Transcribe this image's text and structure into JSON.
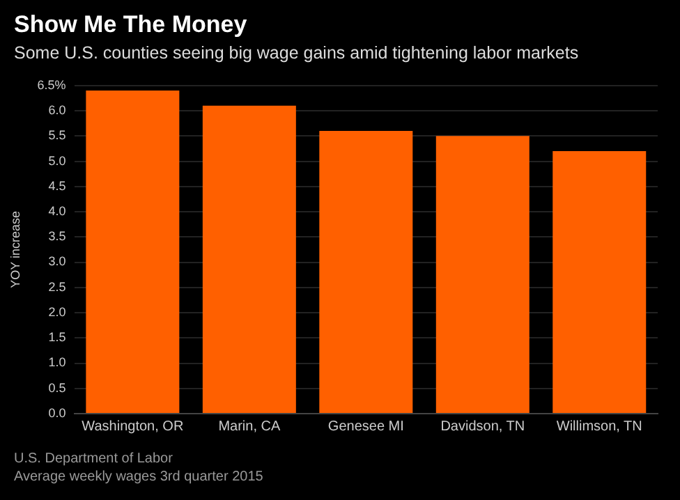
{
  "chart_data": {
    "type": "bar",
    "title": "Show Me The Money",
    "subtitle": "Some U.S. counties seeing big wage gains amid tightening labor markets",
    "ylabel": "YOY increase",
    "categories": [
      "Washington, OR",
      "Marin, CA",
      "Genesee MI",
      "Davidson, TN",
      "Willimson, TN"
    ],
    "values": [
      6.4,
      6.1,
      5.6,
      5.5,
      5.2
    ],
    "color": "#ff6000",
    "ylim": [
      0,
      6.5
    ],
    "yticks": [
      {
        "value": 0,
        "label": "0.0"
      },
      {
        "value": 0.5,
        "label": "0.5"
      },
      {
        "value": 1,
        "label": "1.0"
      },
      {
        "value": 1.5,
        "label": "1.5"
      },
      {
        "value": 2,
        "label": "2.0"
      },
      {
        "value": 2.5,
        "label": "2.5"
      },
      {
        "value": 3,
        "label": "3.0"
      },
      {
        "value": 3.5,
        "label": "3.5"
      },
      {
        "value": 4,
        "label": "4.0"
      },
      {
        "value": 4.5,
        "label": "4.5"
      },
      {
        "value": 5,
        "label": "5.0"
      },
      {
        "value": 5.5,
        "label": "5.5"
      },
      {
        "value": 6,
        "label": "6.0"
      },
      {
        "value": 6.5,
        "label": "6.5%"
      }
    ],
    "grid": "y",
    "annotations": [
      "U.S. Department of Labor",
      "Average weekly wages 3rd quarter 2015"
    ]
  }
}
